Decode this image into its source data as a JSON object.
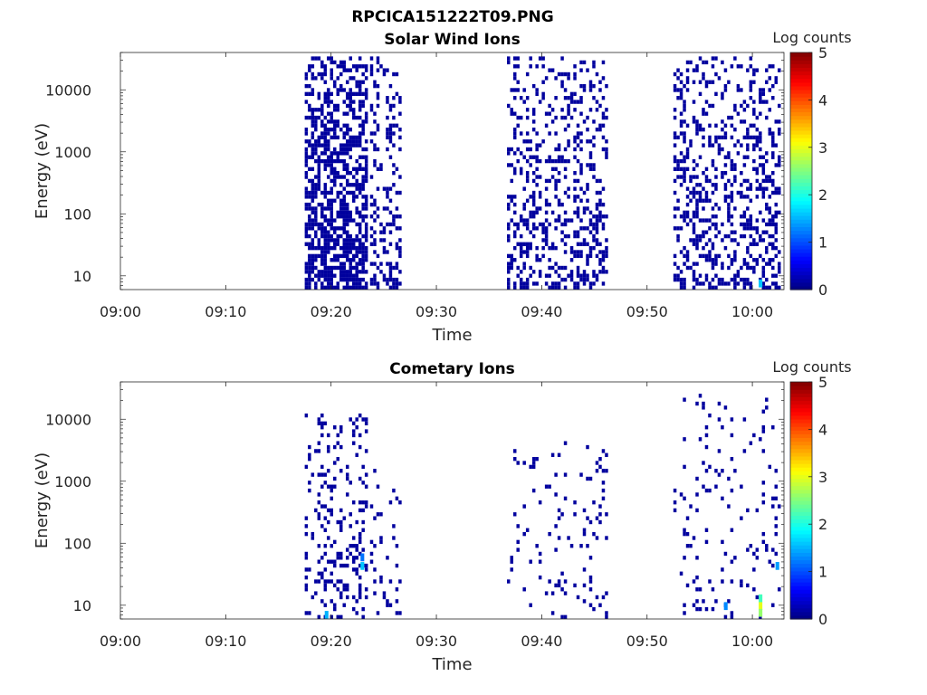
{
  "figure": {
    "title": "RPCICA151222T09.PNG"
  },
  "chart_data": [
    {
      "type": "heatmap",
      "title": "Solar Wind Ions",
      "xlabel": "Time",
      "ylabel": "Energy (eV)",
      "x_ticks": [
        "09:00",
        "09:10",
        "09:20",
        "09:30",
        "09:40",
        "09:50",
        "10:00"
      ],
      "x_range": [
        "09:00",
        "10:03"
      ],
      "y_scale": "log",
      "y_ticks": [
        10,
        100,
        1000,
        10000
      ],
      "y_range": [
        6,
        40000
      ],
      "colorbar": {
        "label": "Log counts",
        "range": [
          0,
          5
        ],
        "ticks": [
          0,
          1,
          2,
          3,
          4,
          5
        ],
        "colormap": "jet"
      },
      "bursts": [
        {
          "start": "09:17.5",
          "end": "09:23.5",
          "emin": 6,
          "emax": 30000,
          "density": 0.55,
          "log_count": 0.15
        },
        {
          "start": "09:23.7",
          "end": "09:26.7",
          "emin": 6,
          "emax": 30000,
          "density": 0.25,
          "log_count": 0.15
        },
        {
          "start": "09:36.7",
          "end": "09:46.0",
          "emin": 6,
          "emax": 30000,
          "density": 0.28,
          "log_count": 0.15
        },
        {
          "start": "09:52.5",
          "end": "10:02.5",
          "emin": 6,
          "emax": 30000,
          "density": 0.28,
          "log_count": 0.15
        }
      ],
      "hotspots": [
        {
          "time": "10:00.6",
          "energy": 7,
          "log_count": 1.6
        }
      ]
    },
    {
      "type": "heatmap",
      "title": "Cometary Ions",
      "xlabel": "Time",
      "ylabel": "Energy (eV)",
      "x_ticks": [
        "09:00",
        "09:10",
        "09:20",
        "09:30",
        "09:40",
        "09:50",
        "10:00"
      ],
      "x_range": [
        "09:00",
        "10:03"
      ],
      "y_scale": "log",
      "y_ticks": [
        10,
        100,
        1000,
        10000
      ],
      "y_range": [
        6,
        40000
      ],
      "colorbar": {
        "label": "Log counts",
        "range": [
          0,
          5
        ],
        "ticks": [
          0,
          1,
          2,
          3,
          4,
          5
        ],
        "colormap": "jet"
      },
      "bursts": [
        {
          "start": "09:17.5",
          "end": "09:23.5",
          "emin": 6,
          "emax": 12000,
          "density": 0.18,
          "log_count": 0.15
        },
        {
          "start": "09:23.7",
          "end": "09:26.7",
          "emin": 6,
          "emax": 1500,
          "density": 0.08,
          "log_count": 0.15
        },
        {
          "start": "09:36.7",
          "end": "09:46.0",
          "emin": 6,
          "emax": 5000,
          "density": 0.06,
          "log_count": 0.15
        },
        {
          "start": "09:52.5",
          "end": "10:02.5",
          "emin": 6,
          "emax": 25000,
          "density": 0.07,
          "log_count": 0.15
        }
      ],
      "hotspots": [
        {
          "time": "09:22.8",
          "energy": 55,
          "log_count": 1.2
        },
        {
          "time": "09:22.8",
          "energy": 40,
          "log_count": 1.6
        },
        {
          "time": "09:19.4",
          "energy": 6.5,
          "log_count": 1.5
        },
        {
          "time": "09:57.3",
          "energy": 9,
          "log_count": 1.3
        },
        {
          "time": "10:00.6",
          "energy": 12,
          "log_count": 2.2
        },
        {
          "time": "10:00.6",
          "energy": 9,
          "log_count": 3.0
        },
        {
          "time": "10:00.6",
          "energy": 7,
          "log_count": 2.6
        },
        {
          "time": "10:02.2",
          "energy": 40,
          "log_count": 1.4
        }
      ]
    }
  ]
}
